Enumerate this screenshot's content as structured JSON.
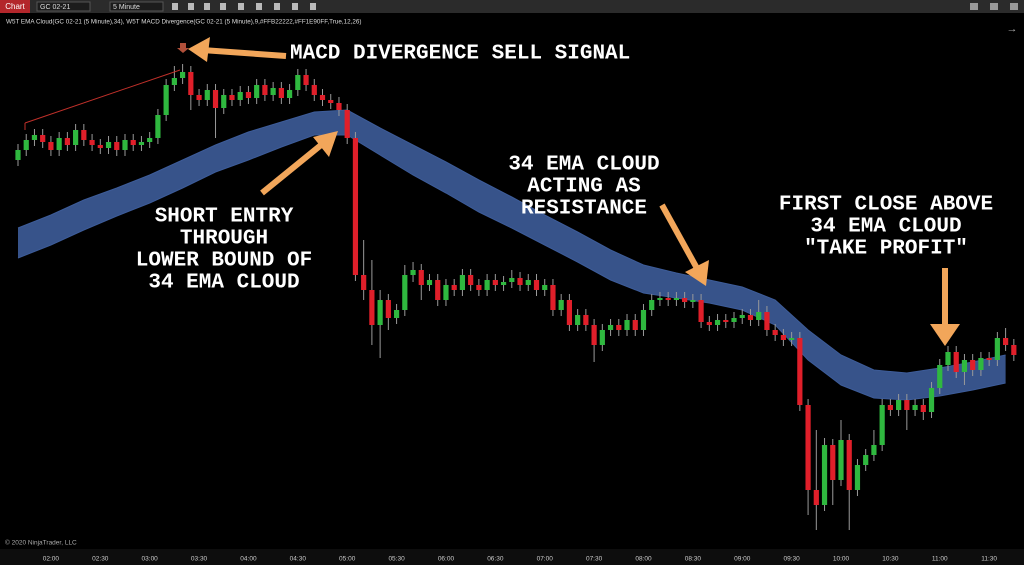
{
  "toolbar": {
    "tab": "Chart",
    "instrument": "GC 02-21",
    "interval": "5 Minute"
  },
  "indicators": "W5T EMA Cloud(GC 02-21 (5 Minute),34),  W5T MACD Divergence(GC 02-21 (5 Minute),9,#FFB22222,#FF1E90FF,True,12,26)",
  "copyright": "© 2020 NinjaTrader, LLC",
  "annotations": [
    {
      "lines": [
        "MACD DIVERGENCE SELL SIGNAL"
      ]
    },
    {
      "lines": [
        "SHORT ENTRY",
        "THROUGH",
        "LOWER BOUND OF",
        "34 EMA CLOUD"
      ]
    },
    {
      "lines": [
        "34 EMA CLOUD",
        "ACTING AS",
        "RESISTANCE"
      ]
    },
    {
      "lines": [
        "FIRST CLOSE ABOVE",
        "34 EMA CLOUD",
        "\"TAKE PROFIT\""
      ]
    }
  ],
  "chart_data": {
    "type": "candlestick",
    "categories": [
      null,
      null,
      null,
      null,
      "02:00",
      null,
      null,
      null,
      null,
      null,
      "02:30",
      null,
      null,
      null,
      null,
      null,
      "03:00",
      null,
      null,
      null,
      null,
      null,
      "03:30",
      null,
      null,
      null,
      null,
      null,
      "04:00",
      null,
      null,
      null,
      null,
      null,
      "04:30",
      null,
      null,
      null,
      null,
      null,
      "05:00",
      null,
      null,
      null,
      null,
      null,
      "05:30",
      null,
      null,
      null,
      null,
      null,
      "06:00",
      null,
      null,
      null,
      null,
      null,
      "06:30",
      null,
      null,
      null,
      null,
      null,
      "07:00",
      null,
      null,
      null,
      null,
      null,
      "07:30",
      null,
      null,
      null,
      null,
      null,
      "08:00",
      null,
      null,
      null,
      null,
      null,
      "08:30",
      null,
      null,
      null,
      null,
      null,
      "09:00",
      null,
      null,
      null,
      null,
      null,
      "09:30",
      null,
      null,
      null,
      null,
      null,
      "10:00",
      null,
      null,
      null,
      null,
      null,
      "10:30",
      null,
      null,
      null,
      null,
      null,
      "11:00",
      null,
      null,
      null,
      null,
      null,
      "11:30",
      null,
      null,
      null
    ],
    "ohlc": [
      [
        1864.0,
        1865.6,
        1863.4,
        1865.0
      ],
      [
        1865.0,
        1866.6,
        1864.4,
        1866.0
      ],
      [
        1866.0,
        1867.1,
        1865.4,
        1866.5
      ],
      [
        1866.5,
        1867.1,
        1865.2,
        1865.8
      ],
      [
        1865.8,
        1866.4,
        1864.4,
        1865.0
      ],
      [
        1865.0,
        1866.8,
        1864.4,
        1866.2
      ],
      [
        1866.2,
        1866.8,
        1864.9,
        1865.5
      ],
      [
        1865.5,
        1867.6,
        1864.9,
        1867.0
      ],
      [
        1867.0,
        1867.6,
        1865.4,
        1866.0
      ],
      [
        1866.0,
        1866.6,
        1864.9,
        1865.5
      ],
      [
        1865.5,
        1866.1,
        1864.6,
        1865.2
      ],
      [
        1865.2,
        1866.4,
        1864.6,
        1865.8
      ],
      [
        1865.8,
        1866.4,
        1864.4,
        1865.0
      ],
      [
        1865.0,
        1866.6,
        1864.4,
        1866.0
      ],
      [
        1866.0,
        1866.6,
        1864.9,
        1865.5
      ],
      [
        1865.5,
        1866.4,
        1864.9,
        1865.8
      ],
      [
        1865.8,
        1866.8,
        1865.2,
        1866.2
      ],
      [
        1866.2,
        1869.1,
        1865.6,
        1868.5
      ],
      [
        1868.5,
        1872.1,
        1867.9,
        1871.5
      ],
      [
        1871.5,
        1873.4,
        1870.9,
        1872.2
      ],
      [
        1872.2,
        1873.6,
        1871.6,
        1872.8
      ],
      [
        1872.8,
        1873.4,
        1869.0,
        1870.5
      ],
      [
        1870.5,
        1871.1,
        1869.4,
        1870.0
      ],
      [
        1870.0,
        1871.6,
        1869.4,
        1871.0
      ],
      [
        1871.0,
        1871.6,
        1866.2,
        1869.2
      ],
      [
        1869.2,
        1871.1,
        1868.6,
        1870.5
      ],
      [
        1870.5,
        1871.1,
        1869.4,
        1870.0
      ],
      [
        1870.0,
        1871.4,
        1869.4,
        1870.8
      ],
      [
        1870.8,
        1871.4,
        1869.6,
        1870.2
      ],
      [
        1870.2,
        1872.1,
        1869.6,
        1871.5
      ],
      [
        1871.5,
        1872.1,
        1869.9,
        1870.5
      ],
      [
        1870.5,
        1871.8,
        1869.9,
        1871.2
      ],
      [
        1871.2,
        1871.8,
        1869.6,
        1870.2
      ],
      [
        1870.2,
        1871.6,
        1869.6,
        1871.0
      ],
      [
        1871.0,
        1873.1,
        1870.4,
        1872.5
      ],
      [
        1872.5,
        1873.1,
        1870.9,
        1871.5
      ],
      [
        1871.5,
        1872.1,
        1869.9,
        1870.5
      ],
      [
        1870.5,
        1871.1,
        1869.4,
        1870.0
      ],
      [
        1870.0,
        1870.6,
        1869.1,
        1869.7
      ],
      [
        1869.7,
        1870.3,
        1868.4,
        1869.0
      ],
      [
        1869.0,
        1869.6,
        1865.6,
        1866.2
      ],
      [
        1866.2,
        1866.8,
        1851.9,
        1852.5
      ],
      [
        1852.5,
        1856.0,
        1850.0,
        1851.0
      ],
      [
        1851.0,
        1854.0,
        1845.5,
        1847.5
      ],
      [
        1847.5,
        1851.0,
        1844.2,
        1850.0
      ],
      [
        1850.0,
        1850.6,
        1847.0,
        1848.2
      ],
      [
        1848.2,
        1849.6,
        1847.6,
        1849.0
      ],
      [
        1849.0,
        1853.5,
        1848.4,
        1852.5
      ],
      [
        1852.5,
        1853.8,
        1851.8,
        1853.0
      ],
      [
        1853.0,
        1853.6,
        1850.0,
        1851.5
      ],
      [
        1851.5,
        1852.6,
        1850.9,
        1852.0
      ],
      [
        1852.0,
        1852.6,
        1849.4,
        1850.0
      ],
      [
        1850.0,
        1852.1,
        1849.4,
        1851.5
      ],
      [
        1851.5,
        1852.1,
        1850.4,
        1851.0
      ],
      [
        1851.0,
        1853.1,
        1850.4,
        1852.5
      ],
      [
        1852.5,
        1853.1,
        1850.9,
        1851.5
      ],
      [
        1851.5,
        1852.1,
        1850.4,
        1851.0
      ],
      [
        1851.0,
        1852.6,
        1850.4,
        1852.0
      ],
      [
        1852.0,
        1852.6,
        1850.9,
        1851.5
      ],
      [
        1851.5,
        1852.4,
        1850.9,
        1851.8
      ],
      [
        1851.8,
        1853.0,
        1851.2,
        1852.2
      ],
      [
        1852.2,
        1852.8,
        1850.9,
        1851.5
      ],
      [
        1851.5,
        1852.6,
        1850.9,
        1852.0
      ],
      [
        1852.0,
        1852.6,
        1850.4,
        1851.0
      ],
      [
        1851.0,
        1852.1,
        1850.4,
        1851.5
      ],
      [
        1851.5,
        1852.1,
        1848.4,
        1849.0
      ],
      [
        1849.0,
        1850.6,
        1848.4,
        1850.0
      ],
      [
        1850.0,
        1850.6,
        1846.9,
        1847.5
      ],
      [
        1847.5,
        1849.1,
        1846.9,
        1848.5
      ],
      [
        1848.5,
        1849.1,
        1846.9,
        1847.5
      ],
      [
        1847.5,
        1848.1,
        1843.8,
        1845.5
      ],
      [
        1845.5,
        1847.6,
        1844.9,
        1847.0
      ],
      [
        1847.0,
        1848.1,
        1846.4,
        1847.5
      ],
      [
        1847.5,
        1848.1,
        1846.4,
        1847.0
      ],
      [
        1847.0,
        1848.6,
        1846.4,
        1848.0
      ],
      [
        1848.0,
        1848.6,
        1846.4,
        1847.0
      ],
      [
        1847.0,
        1849.6,
        1846.4,
        1849.0
      ],
      [
        1849.0,
        1850.6,
        1848.4,
        1850.0
      ],
      [
        1850.0,
        1850.8,
        1849.4,
        1850.2
      ],
      [
        1850.2,
        1850.8,
        1849.4,
        1850.0
      ],
      [
        1850.0,
        1850.8,
        1849.4,
        1850.2
      ],
      [
        1850.2,
        1850.8,
        1849.2,
        1849.8
      ],
      [
        1849.8,
        1850.6,
        1849.2,
        1850.0
      ],
      [
        1850.0,
        1850.6,
        1847.2,
        1847.8
      ],
      [
        1847.8,
        1848.4,
        1846.9,
        1847.5
      ],
      [
        1847.5,
        1848.6,
        1846.9,
        1848.0
      ],
      [
        1848.0,
        1848.6,
        1847.2,
        1847.8
      ],
      [
        1847.8,
        1848.8,
        1847.2,
        1848.2
      ],
      [
        1848.2,
        1849.1,
        1847.6,
        1848.5
      ],
      [
        1848.5,
        1849.1,
        1847.4,
        1848.0
      ],
      [
        1848.0,
        1850.0,
        1847.4,
        1848.8
      ],
      [
        1848.8,
        1849.4,
        1846.4,
        1847.0
      ],
      [
        1847.0,
        1847.6,
        1845.9,
        1846.5
      ],
      [
        1846.5,
        1847.1,
        1845.4,
        1846.0
      ],
      [
        1846.0,
        1846.8,
        1845.4,
        1846.2
      ],
      [
        1846.2,
        1846.8,
        1838.9,
        1839.5
      ],
      [
        1839.5,
        1840.1,
        1828.5,
        1831.0
      ],
      [
        1831.0,
        1837.0,
        1827.0,
        1829.5
      ],
      [
        1829.5,
        1836.2,
        1828.9,
        1835.5
      ],
      [
        1835.5,
        1836.1,
        1829.5,
        1832.0
      ],
      [
        1832.0,
        1838.0,
        1831.4,
        1836.0
      ],
      [
        1836.0,
        1836.6,
        1827.0,
        1831.0
      ],
      [
        1831.0,
        1834.1,
        1830.4,
        1833.5
      ],
      [
        1833.5,
        1835.1,
        1832.9,
        1834.5
      ],
      [
        1834.5,
        1837.0,
        1833.9,
        1835.5
      ],
      [
        1835.5,
        1840.1,
        1834.9,
        1839.5
      ],
      [
        1839.5,
        1840.1,
        1838.4,
        1839.0
      ],
      [
        1839.0,
        1840.6,
        1838.4,
        1840.0
      ],
      [
        1840.0,
        1840.6,
        1837.0,
        1839.0
      ],
      [
        1839.0,
        1840.1,
        1838.4,
        1839.5
      ],
      [
        1839.5,
        1840.1,
        1838.0,
        1838.8
      ],
      [
        1838.8,
        1841.8,
        1838.2,
        1841.2
      ],
      [
        1841.2,
        1844.1,
        1840.6,
        1843.5
      ],
      [
        1843.5,
        1845.4,
        1842.9,
        1844.8
      ],
      [
        1844.8,
        1845.4,
        1842.2,
        1842.8
      ],
      [
        1842.8,
        1844.6,
        1841.5,
        1844.0
      ],
      [
        1844.0,
        1844.6,
        1842.4,
        1843.0
      ],
      [
        1843.0,
        1844.8,
        1842.4,
        1844.2
      ],
      [
        1844.2,
        1844.8,
        1843.4,
        1844.0
      ],
      [
        1844.0,
        1846.8,
        1843.4,
        1846.2
      ],
      [
        1846.2,
        1847.2,
        1844.9,
        1845.5
      ],
      [
        1845.5,
        1846.1,
        1843.9,
        1844.5
      ]
    ],
    "up_color": "#2fb83f",
    "down_color": "#e01f2a",
    "ylim": [
      1825.2,
      1878.0
    ],
    "cloud": {
      "x": [
        0,
        4,
        8,
        12,
        16,
        20,
        24,
        28,
        32,
        36,
        40,
        44,
        48,
        52,
        56,
        60,
        64,
        68,
        72,
        76,
        80,
        84,
        88,
        92,
        96,
        100,
        104,
        108,
        112,
        116,
        120
      ],
      "upper": [
        1857.2,
        1858.5,
        1860.0,
        1861.2,
        1862.5,
        1864.0,
        1865.5,
        1866.8,
        1867.8,
        1868.8,
        1869.0,
        1867.2,
        1865.5,
        1863.8,
        1862.0,
        1860.3,
        1858.5,
        1856.8,
        1855.0,
        1853.5,
        1852.7,
        1852.0,
        1851.3,
        1850.0,
        1847.0,
        1844.5,
        1843.0,
        1842.7,
        1843.2,
        1843.8,
        1844.5
      ],
      "lower": [
        1854.2,
        1855.5,
        1857.0,
        1858.4,
        1859.7,
        1861.2,
        1862.8,
        1864.0,
        1865.3,
        1866.5,
        1866.5,
        1864.5,
        1862.5,
        1860.7,
        1858.8,
        1857.2,
        1855.5,
        1853.8,
        1852.0,
        1850.7,
        1850.2,
        1849.7,
        1849.0,
        1847.5,
        1844.0,
        1841.5,
        1840.2,
        1840.0,
        1840.4,
        1841.0,
        1841.7
      ],
      "color": "#3d5c99"
    }
  }
}
